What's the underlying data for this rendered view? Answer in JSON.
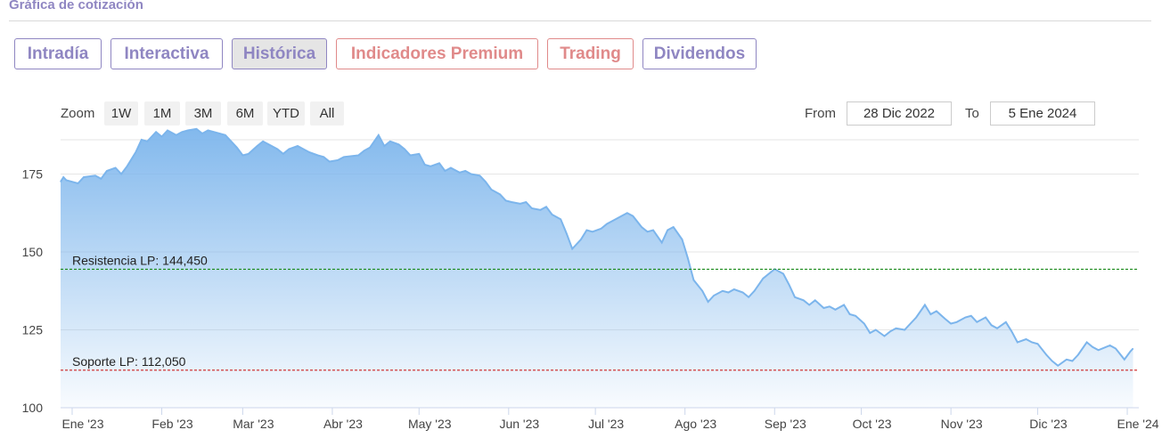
{
  "section": {
    "title": "Gráfica de cotización"
  },
  "tabs": [
    {
      "label": "Intradía",
      "active": false,
      "premium": false
    },
    {
      "label": "Interactiva",
      "active": false,
      "premium": false
    },
    {
      "label": "Histórica",
      "active": true,
      "premium": false
    },
    {
      "label": "Indicadores Premium",
      "active": false,
      "premium": true
    },
    {
      "label": "Trading",
      "active": false,
      "premium": true
    },
    {
      "label": "Dividendos",
      "active": false,
      "premium": false
    }
  ],
  "zoom": {
    "label": "Zoom",
    "options": [
      "1W",
      "1M",
      "3M",
      "6M",
      "YTD",
      "All"
    ]
  },
  "range": {
    "from_label": "From",
    "from_value": "28 Dic 2022",
    "to_label": "To",
    "to_value": "5 Ene 2024"
  },
  "colors": {
    "accent": "#8f86c2",
    "premium": "#e08a8a",
    "line": "#7cb5ec",
    "resistance": "#1a8a1a",
    "support": "#cc2222"
  },
  "chart_data": {
    "type": "area",
    "x_start": "2022-12-28",
    "x_end": "2024-01-05",
    "ylim": [
      100,
      186
    ],
    "yticks": [
      100,
      125,
      150,
      175
    ],
    "grid": true,
    "xticks": [
      {
        "label": "Ene '23",
        "date": "2023-01-01"
      },
      {
        "label": "Feb '23",
        "date": "2023-02-01"
      },
      {
        "label": "Mar '23",
        "date": "2023-03-01"
      },
      {
        "label": "Abr '23",
        "date": "2023-04-01"
      },
      {
        "label": "May '23",
        "date": "2023-05-01"
      },
      {
        "label": "Jun '23",
        "date": "2023-06-01"
      },
      {
        "label": "Jul '23",
        "date": "2023-07-01"
      },
      {
        "label": "Ago '23",
        "date": "2023-08-01"
      },
      {
        "label": "Sep '23",
        "date": "2023-09-01"
      },
      {
        "label": "Oct '23",
        "date": "2023-10-01"
      },
      {
        "label": "Nov '23",
        "date": "2023-11-01"
      },
      {
        "label": "Dic '23",
        "date": "2023-12-01"
      },
      {
        "label": "Ene '24",
        "date": "2024-01-01"
      }
    ],
    "reference_lines": [
      {
        "label": "Resistencia LP: 144,450",
        "value": 144.45,
        "style": "resistance"
      },
      {
        "label": "Soporte LP: 112,050",
        "value": 112.05,
        "style": "support"
      }
    ],
    "series": [
      {
        "points": [
          [
            "2022-12-28",
            172.5
          ],
          [
            "2022-12-29",
            174.0
          ],
          [
            "2022-12-30",
            173.0
          ],
          [
            "2023-01-03",
            172.0
          ],
          [
            "2023-01-05",
            174.0
          ],
          [
            "2023-01-09",
            174.5
          ],
          [
            "2023-01-11",
            173.5
          ],
          [
            "2023-01-13",
            176.0
          ],
          [
            "2023-01-16",
            177.0
          ],
          [
            "2023-01-18",
            175.0
          ],
          [
            "2023-01-20",
            177.5
          ],
          [
            "2023-01-23",
            182.0
          ],
          [
            "2023-01-25",
            186.0
          ],
          [
            "2023-01-27",
            185.5
          ],
          [
            "2023-01-30",
            188.5
          ],
          [
            "2023-02-01",
            187.0
          ],
          [
            "2023-02-03",
            189.0
          ],
          [
            "2023-02-06",
            187.5
          ],
          [
            "2023-02-08",
            188.5
          ],
          [
            "2023-02-10",
            189.0
          ],
          [
            "2023-02-13",
            189.5
          ],
          [
            "2023-02-15",
            188.0
          ],
          [
            "2023-02-17",
            189.0
          ],
          [
            "2023-02-21",
            188.0
          ],
          [
            "2023-02-23",
            187.5
          ],
          [
            "2023-02-27",
            183.5
          ],
          [
            "2023-03-01",
            181.0
          ],
          [
            "2023-03-03",
            181.5
          ],
          [
            "2023-03-06",
            184.0
          ],
          [
            "2023-03-08",
            185.5
          ],
          [
            "2023-03-10",
            184.5
          ],
          [
            "2023-03-13",
            183.0
          ],
          [
            "2023-03-15",
            181.5
          ],
          [
            "2023-03-17",
            183.0
          ],
          [
            "2023-03-20",
            184.0
          ],
          [
            "2023-03-22",
            183.0
          ],
          [
            "2023-03-24",
            182.0
          ],
          [
            "2023-03-27",
            181.0
          ],
          [
            "2023-03-29",
            180.5
          ],
          [
            "2023-03-31",
            179.0
          ],
          [
            "2023-04-03",
            179.5
          ],
          [
            "2023-04-05",
            180.5
          ],
          [
            "2023-04-10",
            181.0
          ],
          [
            "2023-04-12",
            182.5
          ],
          [
            "2023-04-14",
            183.5
          ],
          [
            "2023-04-17",
            187.5
          ],
          [
            "2023-04-19",
            184.0
          ],
          [
            "2023-04-21",
            185.5
          ],
          [
            "2023-04-24",
            184.5
          ],
          [
            "2023-04-26",
            183.0
          ],
          [
            "2023-04-28",
            181.0
          ],
          [
            "2023-05-01",
            181.5
          ],
          [
            "2023-05-03",
            178.0
          ],
          [
            "2023-05-05",
            177.5
          ],
          [
            "2023-05-08",
            178.5
          ],
          [
            "2023-05-10",
            176.0
          ],
          [
            "2023-05-12",
            177.0
          ],
          [
            "2023-05-15",
            175.5
          ],
          [
            "2023-05-17",
            176.0
          ],
          [
            "2023-05-19",
            175.0
          ],
          [
            "2023-05-22",
            174.5
          ],
          [
            "2023-05-24",
            172.5
          ],
          [
            "2023-05-26",
            170.0
          ],
          [
            "2023-05-29",
            168.5
          ],
          [
            "2023-05-31",
            166.5
          ],
          [
            "2023-06-02",
            166.0
          ],
          [
            "2023-06-05",
            165.5
          ],
          [
            "2023-06-07",
            166.0
          ],
          [
            "2023-06-09",
            164.0
          ],
          [
            "2023-06-12",
            163.5
          ],
          [
            "2023-06-14",
            164.5
          ],
          [
            "2023-06-16",
            162.0
          ],
          [
            "2023-06-19",
            160.5
          ],
          [
            "2023-06-21",
            156.0
          ],
          [
            "2023-06-23",
            151.0
          ],
          [
            "2023-06-26",
            154.0
          ],
          [
            "2023-06-28",
            157.0
          ],
          [
            "2023-06-30",
            156.5
          ],
          [
            "2023-07-03",
            157.5
          ],
          [
            "2023-07-05",
            159.0
          ],
          [
            "2023-07-07",
            160.0
          ],
          [
            "2023-07-10",
            161.5
          ],
          [
            "2023-07-12",
            162.5
          ],
          [
            "2023-07-14",
            161.5
          ],
          [
            "2023-07-17",
            158.0
          ],
          [
            "2023-07-19",
            156.5
          ],
          [
            "2023-07-21",
            157.0
          ],
          [
            "2023-07-24",
            153.0
          ],
          [
            "2023-07-26",
            157.0
          ],
          [
            "2023-07-28",
            158.0
          ],
          [
            "2023-07-31",
            154.0
          ],
          [
            "2023-08-02",
            148.0
          ],
          [
            "2023-08-04",
            141.0
          ],
          [
            "2023-08-07",
            137.5
          ],
          [
            "2023-08-09",
            134.0
          ],
          [
            "2023-08-11",
            136.0
          ],
          [
            "2023-08-14",
            137.5
          ],
          [
            "2023-08-16",
            137.0
          ],
          [
            "2023-08-18",
            138.0
          ],
          [
            "2023-08-21",
            137.0
          ],
          [
            "2023-08-23",
            135.5
          ],
          [
            "2023-08-25",
            137.5
          ],
          [
            "2023-08-28",
            141.5
          ],
          [
            "2023-08-30",
            143.0
          ],
          [
            "2023-09-01",
            144.5
          ],
          [
            "2023-09-04",
            143.0
          ],
          [
            "2023-09-06",
            139.5
          ],
          [
            "2023-09-08",
            135.5
          ],
          [
            "2023-09-11",
            134.5
          ],
          [
            "2023-09-13",
            133.0
          ],
          [
            "2023-09-15",
            134.5
          ],
          [
            "2023-09-18",
            132.0
          ],
          [
            "2023-09-20",
            132.5
          ],
          [
            "2023-09-22",
            131.5
          ],
          [
            "2023-09-25",
            133.0
          ],
          [
            "2023-09-27",
            130.0
          ],
          [
            "2023-09-29",
            129.5
          ],
          [
            "2023-10-02",
            127.0
          ],
          [
            "2023-10-04",
            124.0
          ],
          [
            "2023-10-06",
            125.0
          ],
          [
            "2023-10-09",
            123.0
          ],
          [
            "2023-10-11",
            124.5
          ],
          [
            "2023-10-13",
            125.5
          ],
          [
            "2023-10-16",
            125.0
          ],
          [
            "2023-10-18",
            127.0
          ],
          [
            "2023-10-20",
            129.0
          ],
          [
            "2023-10-23",
            133.0
          ],
          [
            "2023-10-25",
            130.0
          ],
          [
            "2023-10-27",
            131.0
          ],
          [
            "2023-10-30",
            128.5
          ],
          [
            "2023-11-01",
            127.0
          ],
          [
            "2023-11-03",
            127.5
          ],
          [
            "2023-11-06",
            129.0
          ],
          [
            "2023-11-08",
            129.5
          ],
          [
            "2023-11-10",
            127.5
          ],
          [
            "2023-11-13",
            129.0
          ],
          [
            "2023-11-15",
            126.5
          ],
          [
            "2023-11-17",
            125.5
          ],
          [
            "2023-11-20",
            127.5
          ],
          [
            "2023-11-22",
            124.5
          ],
          [
            "2023-11-24",
            121.0
          ],
          [
            "2023-11-27",
            122.0
          ],
          [
            "2023-11-29",
            121.0
          ],
          [
            "2023-12-01",
            120.5
          ],
          [
            "2023-12-04",
            117.0
          ],
          [
            "2023-12-06",
            115.0
          ],
          [
            "2023-12-08",
            113.5
          ],
          [
            "2023-12-11",
            115.5
          ],
          [
            "2023-12-13",
            115.0
          ],
          [
            "2023-12-15",
            117.0
          ],
          [
            "2023-12-18",
            121.0
          ],
          [
            "2023-12-20",
            119.5
          ],
          [
            "2023-12-22",
            118.5
          ],
          [
            "2023-12-26",
            120.0
          ],
          [
            "2023-12-28",
            119.0
          ],
          [
            "2023-12-31",
            115.5
          ],
          [
            "2024-01-02",
            118.0
          ],
          [
            "2024-01-03",
            119.0
          ]
        ]
      }
    ]
  }
}
